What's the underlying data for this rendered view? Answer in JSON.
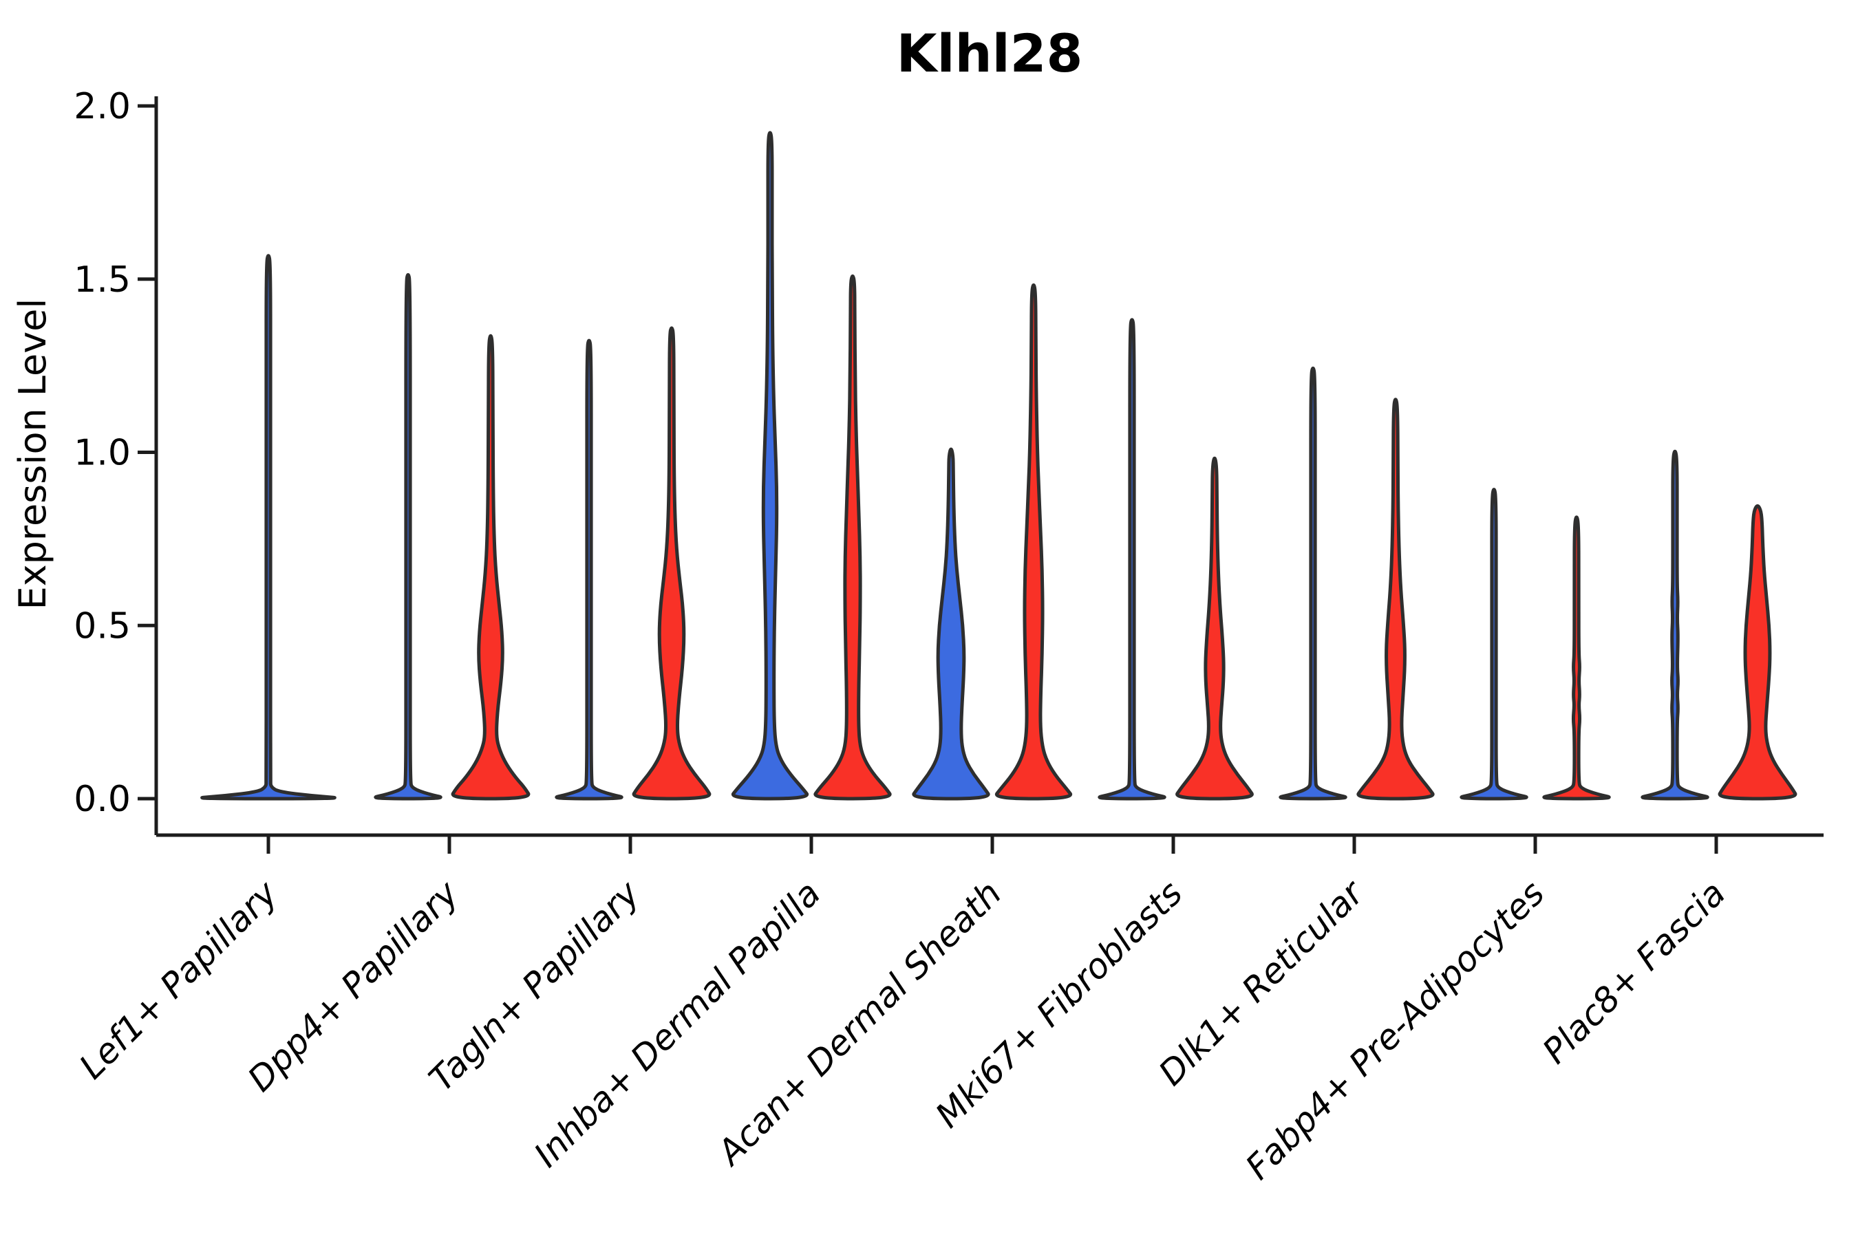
{
  "figure": {
    "background": "#ffffff"
  },
  "chart_data": {
    "type": "violin",
    "title": "Klhl28",
    "ylabel": "Expression Level",
    "xlabel": "",
    "grid": false,
    "legend_position": "none",
    "ylim": [
      -0.1,
      2.03
    ],
    "yticks": [
      {
        "value": 0.0,
        "label": "0.0"
      },
      {
        "value": 0.5,
        "label": "0.5"
      },
      {
        "value": 1.0,
        "label": "1.0"
      },
      {
        "value": 1.5,
        "label": "1.5"
      },
      {
        "value": 2.0,
        "label": "2.0"
      }
    ],
    "colors": {
      "blue": "#3C6BE0",
      "red": "#F93127",
      "outline": "#2E2E2E",
      "axis": "#1C1C1C",
      "text": "#000000"
    },
    "categories": [
      "Lef1+ Papillary",
      "Dpp4+ Papillary",
      "Tagln+ Papillary",
      "Inhba+ Dermal Papilla",
      "Acan+ Dermal Sheath",
      "Mki67+ Fibroblasts",
      "Dlk1+ Reticular",
      "Fabp4+ Pre-Adipocytes",
      "Plac8+ Fascia"
    ],
    "violins": [
      {
        "category_index": 0,
        "group": "blue",
        "position": "center",
        "width_scale": 2.0,
        "max_expression": 1.575,
        "profile": [
          [
            0,
            1
          ],
          [
            0.008,
            0.55
          ],
          [
            0.02,
            0.12
          ],
          [
            0.035,
            0.03
          ],
          [
            0.05,
            0.026
          ],
          [
            0.4,
            0.026
          ],
          [
            0.8,
            0.026
          ],
          [
            1.2,
            0.026
          ],
          [
            1.545,
            0.026
          ],
          [
            1.575,
            0
          ]
        ]
      },
      {
        "category_index": 1,
        "group": "blue",
        "position": "left",
        "width_scale": 1.0,
        "max_expression": 1.52,
        "profile": [
          [
            0,
            1
          ],
          [
            0.013,
            0.5
          ],
          [
            0.03,
            0.1
          ],
          [
            0.05,
            0.052
          ],
          [
            0.4,
            0.052
          ],
          [
            0.9,
            0.052
          ],
          [
            1.49,
            0.052
          ],
          [
            1.52,
            0
          ]
        ]
      },
      {
        "category_index": 1,
        "group": "red",
        "position": "right",
        "width_scale": 1.0,
        "max_expression": 1.345,
        "profile": [
          [
            0,
            1
          ],
          [
            0.03,
            0.85
          ],
          [
            0.06,
            0.62
          ],
          [
            0.1,
            0.38
          ],
          [
            0.14,
            0.22
          ],
          [
            0.18,
            0.135
          ],
          [
            0.25,
            0.165
          ],
          [
            0.34,
            0.26
          ],
          [
            0.41,
            0.3
          ],
          [
            0.48,
            0.28
          ],
          [
            0.56,
            0.21
          ],
          [
            0.65,
            0.13
          ],
          [
            0.75,
            0.085
          ],
          [
            0.9,
            0.062
          ],
          [
            1.1,
            0.055
          ],
          [
            1.31,
            0.05
          ],
          [
            1.345,
            0
          ]
        ]
      },
      {
        "category_index": 2,
        "group": "blue",
        "position": "left",
        "width_scale": 1.0,
        "max_expression": 1.33,
        "profile": [
          [
            0,
            1
          ],
          [
            0.013,
            0.5
          ],
          [
            0.03,
            0.1
          ],
          [
            0.05,
            0.052
          ],
          [
            0.4,
            0.052
          ],
          [
            0.9,
            0.052
          ],
          [
            1.3,
            0.052
          ],
          [
            1.33,
            0
          ]
        ]
      },
      {
        "category_index": 2,
        "group": "red",
        "position": "right",
        "width_scale": 1.0,
        "max_expression": 1.365,
        "profile": [
          [
            0,
            1
          ],
          [
            0.03,
            0.85
          ],
          [
            0.07,
            0.57
          ],
          [
            0.11,
            0.34
          ],
          [
            0.15,
            0.2
          ],
          [
            0.2,
            0.13
          ],
          [
            0.28,
            0.175
          ],
          [
            0.38,
            0.27
          ],
          [
            0.47,
            0.31
          ],
          [
            0.55,
            0.28
          ],
          [
            0.63,
            0.2
          ],
          [
            0.72,
            0.12
          ],
          [
            0.82,
            0.08
          ],
          [
            0.95,
            0.06
          ],
          [
            1.15,
            0.055
          ],
          [
            1.34,
            0.05
          ],
          [
            1.365,
            0
          ]
        ]
      },
      {
        "category_index": 3,
        "group": "blue",
        "position": "left",
        "width_scale": 1.0,
        "max_expression": 1.93,
        "profile": [
          [
            0,
            1
          ],
          [
            0.03,
            0.8
          ],
          [
            0.07,
            0.5
          ],
          [
            0.11,
            0.27
          ],
          [
            0.15,
            0.145
          ],
          [
            0.22,
            0.1
          ],
          [
            0.35,
            0.095
          ],
          [
            0.5,
            0.105
          ],
          [
            0.65,
            0.135
          ],
          [
            0.78,
            0.165
          ],
          [
            0.9,
            0.165
          ],
          [
            1.02,
            0.13
          ],
          [
            1.15,
            0.09
          ],
          [
            1.3,
            0.065
          ],
          [
            1.5,
            0.052
          ],
          [
            1.7,
            0.05
          ],
          [
            1.9,
            0.05
          ],
          [
            1.93,
            0
          ]
        ]
      },
      {
        "category_index": 3,
        "group": "red",
        "position": "right",
        "width_scale": 1.0,
        "max_expression": 1.515,
        "profile": [
          [
            0,
            1
          ],
          [
            0.03,
            0.82
          ],
          [
            0.07,
            0.52
          ],
          [
            0.11,
            0.3
          ],
          [
            0.15,
            0.185
          ],
          [
            0.21,
            0.145
          ],
          [
            0.32,
            0.15
          ],
          [
            0.45,
            0.175
          ],
          [
            0.58,
            0.19
          ],
          [
            0.7,
            0.185
          ],
          [
            0.82,
            0.155
          ],
          [
            0.95,
            0.115
          ],
          [
            1.08,
            0.082
          ],
          [
            1.22,
            0.062
          ],
          [
            1.38,
            0.052
          ],
          [
            1.49,
            0.05
          ],
          [
            1.515,
            0
          ]
        ]
      },
      {
        "category_index": 4,
        "group": "blue",
        "position": "left",
        "width_scale": 1.0,
        "max_expression": 1.015,
        "profile": [
          [
            0,
            1
          ],
          [
            0.03,
            0.82
          ],
          [
            0.07,
            0.56
          ],
          [
            0.11,
            0.36
          ],
          [
            0.15,
            0.27
          ],
          [
            0.2,
            0.245
          ],
          [
            0.27,
            0.27
          ],
          [
            0.35,
            0.31
          ],
          [
            0.42,
            0.325
          ],
          [
            0.5,
            0.29
          ],
          [
            0.58,
            0.215
          ],
          [
            0.66,
            0.14
          ],
          [
            0.74,
            0.095
          ],
          [
            0.84,
            0.068
          ],
          [
            0.95,
            0.055
          ],
          [
            0.99,
            0.05
          ],
          [
            1.015,
            0
          ]
        ]
      },
      {
        "category_index": 4,
        "group": "red",
        "position": "right",
        "width_scale": 1.0,
        "max_expression": 1.49,
        "profile": [
          [
            0,
            1
          ],
          [
            0.03,
            0.8
          ],
          [
            0.07,
            0.52
          ],
          [
            0.11,
            0.32
          ],
          [
            0.15,
            0.215
          ],
          [
            0.21,
            0.165
          ],
          [
            0.3,
            0.175
          ],
          [
            0.42,
            0.21
          ],
          [
            0.54,
            0.225
          ],
          [
            0.66,
            0.21
          ],
          [
            0.78,
            0.17
          ],
          [
            0.9,
            0.125
          ],
          [
            1.02,
            0.09
          ],
          [
            1.15,
            0.068
          ],
          [
            1.3,
            0.055
          ],
          [
            1.46,
            0.05
          ],
          [
            1.49,
            0
          ]
        ]
      },
      {
        "category_index": 5,
        "group": "blue",
        "position": "left",
        "width_scale": 1.0,
        "max_expression": 1.39,
        "profile": [
          [
            0,
            1
          ],
          [
            0.013,
            0.5
          ],
          [
            0.03,
            0.1
          ],
          [
            0.05,
            0.052
          ],
          [
            0.45,
            0.052
          ],
          [
            0.9,
            0.052
          ],
          [
            1.36,
            0.052
          ],
          [
            1.39,
            0
          ]
        ]
      },
      {
        "category_index": 5,
        "group": "red",
        "position": "right",
        "width_scale": 1.0,
        "max_expression": 0.99,
        "profile": [
          [
            0,
            1
          ],
          [
            0.03,
            0.83
          ],
          [
            0.07,
            0.56
          ],
          [
            0.11,
            0.33
          ],
          [
            0.15,
            0.195
          ],
          [
            0.2,
            0.135
          ],
          [
            0.27,
            0.175
          ],
          [
            0.34,
            0.22
          ],
          [
            0.4,
            0.225
          ],
          [
            0.47,
            0.19
          ],
          [
            0.55,
            0.135
          ],
          [
            0.64,
            0.095
          ],
          [
            0.75,
            0.068
          ],
          [
            0.87,
            0.057
          ],
          [
            0.96,
            0.05
          ],
          [
            0.99,
            0
          ]
        ]
      },
      {
        "category_index": 6,
        "group": "blue",
        "position": "left",
        "width_scale": 1.0,
        "max_expression": 1.25,
        "profile": [
          [
            0,
            1
          ],
          [
            0.013,
            0.5
          ],
          [
            0.03,
            0.1
          ],
          [
            0.05,
            0.052
          ],
          [
            0.4,
            0.052
          ],
          [
            0.85,
            0.052
          ],
          [
            1.22,
            0.052
          ],
          [
            1.25,
            0
          ]
        ]
      },
      {
        "category_index": 6,
        "group": "red",
        "position": "right",
        "width_scale": 1.0,
        "max_expression": 1.16,
        "profile": [
          [
            0,
            1
          ],
          [
            0.03,
            0.82
          ],
          [
            0.07,
            0.54
          ],
          [
            0.11,
            0.31
          ],
          [
            0.15,
            0.19
          ],
          [
            0.21,
            0.14
          ],
          [
            0.29,
            0.18
          ],
          [
            0.37,
            0.225
          ],
          [
            0.44,
            0.23
          ],
          [
            0.52,
            0.185
          ],
          [
            0.6,
            0.13
          ],
          [
            0.7,
            0.09
          ],
          [
            0.82,
            0.066
          ],
          [
            0.95,
            0.057
          ],
          [
            1.13,
            0.05
          ],
          [
            1.16,
            0
          ]
        ]
      },
      {
        "category_index": 7,
        "group": "blue",
        "position": "left",
        "width_scale": 1.0,
        "max_expression": 0.9,
        "profile": [
          [
            0,
            1
          ],
          [
            0.013,
            0.5
          ],
          [
            0.03,
            0.1
          ],
          [
            0.05,
            0.052
          ],
          [
            0.3,
            0.052
          ],
          [
            0.6,
            0.052
          ],
          [
            0.87,
            0.052
          ],
          [
            0.9,
            0
          ]
        ]
      },
      {
        "category_index": 7,
        "group": "red",
        "position": "right",
        "width_scale": 1.0,
        "max_expression": 0.82,
        "profile": [
          [
            0,
            1
          ],
          [
            0.013,
            0.5
          ],
          [
            0.03,
            0.1
          ],
          [
            0.05,
            0.052
          ],
          [
            0.19,
            0.052
          ],
          [
            0.23,
            0.085
          ],
          [
            0.27,
            0.055
          ],
          [
            0.3,
            0.08
          ],
          [
            0.34,
            0.055
          ],
          [
            0.38,
            0.082
          ],
          [
            0.42,
            0.055
          ],
          [
            0.6,
            0.052
          ],
          [
            0.79,
            0.052
          ],
          [
            0.82,
            0
          ]
        ]
      },
      {
        "category_index": 8,
        "group": "blue",
        "position": "left",
        "width_scale": 1.0,
        "max_expression": 1.01,
        "profile": [
          [
            0,
            1
          ],
          [
            0.013,
            0.5
          ],
          [
            0.03,
            0.1
          ],
          [
            0.05,
            0.052
          ],
          [
            0.22,
            0.052
          ],
          [
            0.26,
            0.08
          ],
          [
            0.3,
            0.055
          ],
          [
            0.34,
            0.082
          ],
          [
            0.38,
            0.055
          ],
          [
            0.47,
            0.078
          ],
          [
            0.52,
            0.055
          ],
          [
            0.57,
            0.075
          ],
          [
            0.62,
            0.052
          ],
          [
            0.8,
            0.052
          ],
          [
            0.98,
            0.052
          ],
          [
            1.01,
            0
          ]
        ]
      },
      {
        "category_index": 8,
        "group": "red",
        "position": "right",
        "width_scale": 1.0,
        "max_expression": 0.85,
        "profile": [
          [
            0,
            1
          ],
          [
            0.03,
            0.85
          ],
          [
            0.07,
            0.6
          ],
          [
            0.11,
            0.38
          ],
          [
            0.15,
            0.25
          ],
          [
            0.2,
            0.19
          ],
          [
            0.27,
            0.23
          ],
          [
            0.35,
            0.285
          ],
          [
            0.42,
            0.31
          ],
          [
            0.5,
            0.285
          ],
          [
            0.58,
            0.22
          ],
          [
            0.66,
            0.16
          ],
          [
            0.73,
            0.13
          ],
          [
            0.79,
            0.115
          ],
          [
            0.83,
            0.09
          ],
          [
            0.85,
            0
          ]
        ]
      }
    ]
  }
}
